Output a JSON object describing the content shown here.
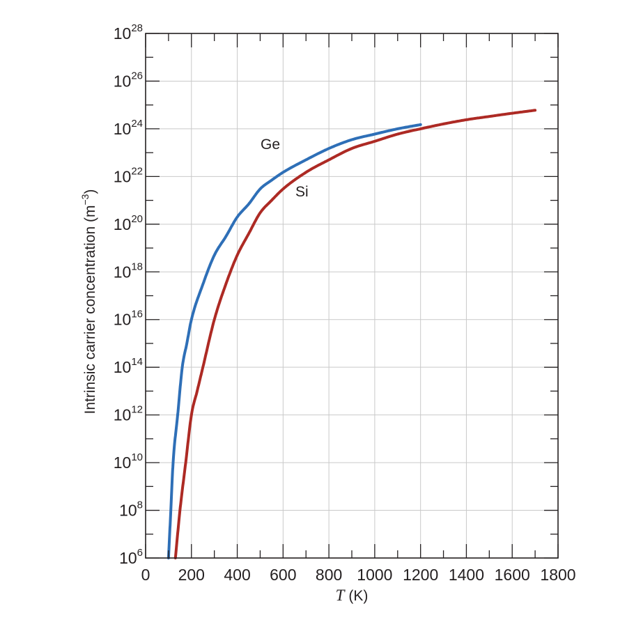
{
  "chart_data": {
    "type": "line",
    "title": "",
    "xlabel": "T",
    "xlabel_unit": "(K)",
    "ylabel": "Intrinsic carrier concentration (m",
    "ylabel_unit_exp": "−3",
    "ylabel_close": ")",
    "x_scale": "linear",
    "y_scale": "log",
    "xlim": [
      0,
      1800
    ],
    "ylim": [
      1000000.0,
      1e+28
    ],
    "x_ticks": [
      0,
      200,
      400,
      600,
      800,
      1000,
      1200,
      1400,
      1600,
      1800
    ],
    "x_tick_labels": [
      "0",
      "200",
      "400",
      "600",
      "800",
      "1000",
      "1200",
      "1400",
      "1600",
      "1800"
    ],
    "y_tick_base": "10",
    "y_tick_exponents": [
      "6",
      "8",
      "10",
      "12",
      "14",
      "16",
      "18",
      "20",
      "22",
      "24",
      "26",
      "28"
    ],
    "grid": true,
    "legend": "none",
    "series": [
      {
        "name": "Ge",
        "color": "#2e6fb7",
        "x": [
          100,
          110,
          120,
          140,
          160,
          180,
          200,
          250,
          300,
          350,
          400,
          450,
          500,
          550,
          600,
          700,
          800,
          900,
          1000,
          1100,
          1200
        ],
        "y": [
          1000000.0,
          100000000.0,
          10000000000.0,
          1000000000000.0,
          100000000000000.0,
          1000000000000000.0,
          1e+16,
          3e+17,
          5e+18,
          3e+19,
          2e+20,
          7e+20,
          3e+21,
          7e+21,
          1.5e+22,
          5e+22,
          1.5e+23,
          3.5e+23,
          6e+23,
          1e+24,
          1.5e+24
        ]
      },
      {
        "name": "Si",
        "color": "#ad2a24",
        "x": [
          130,
          150,
          175,
          200,
          225,
          250,
          300,
          350,
          400,
          450,
          500,
          550,
          600,
          700,
          800,
          900,
          1000,
          1100,
          1200,
          1300,
          1400,
          1500,
          1600,
          1700
        ],
        "y": [
          1000000.0,
          100000000.0,
          10000000000.0,
          1000000000000.0,
          10000000000000.0,
          100000000000000.0,
          1e+16,
          3e+17,
          5e+18,
          4e+19,
          3e+20,
          1e+21,
          3e+21,
          1.5e+22,
          5e+22,
          1.5e+23,
          3e+23,
          6e+23,
          1e+24,
          1.6e+24,
          2.4e+24,
          3.3e+24,
          4.5e+24,
          6e+24
        ]
      }
    ]
  }
}
